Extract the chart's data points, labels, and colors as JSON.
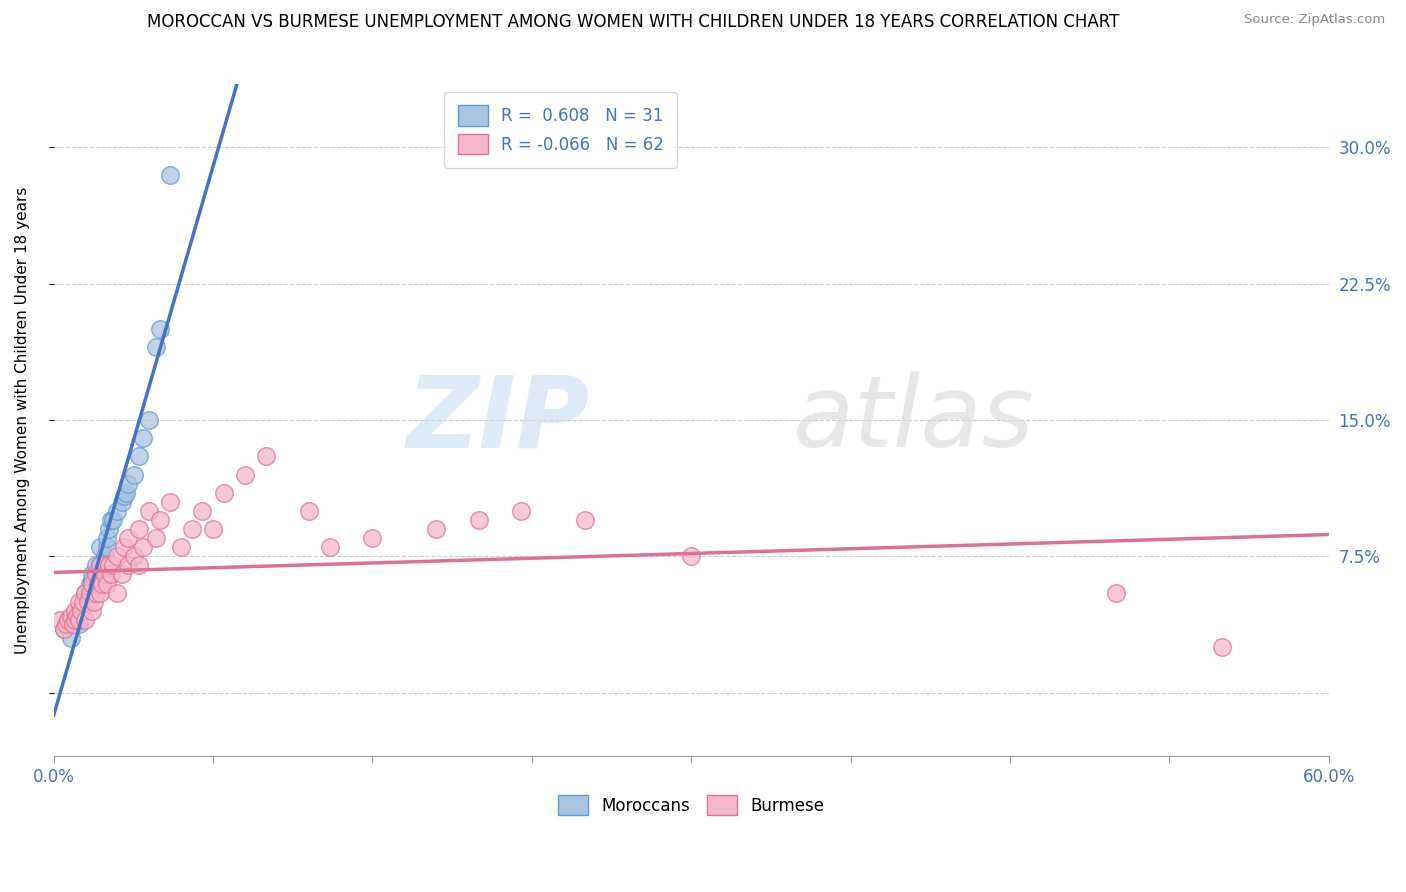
{
  "title": "MOROCCAN VS BURMESE UNEMPLOYMENT AMONG WOMEN WITH CHILDREN UNDER 18 YEARS CORRELATION CHART",
  "source": "Source: ZipAtlas.com",
  "ylabel": "Unemployment Among Women with Children Under 18 years",
  "xlim": [
    0,
    0.6
  ],
  "ylim": [
    -0.035,
    0.335
  ],
  "xticks": [
    0.0,
    0.075,
    0.15,
    0.225,
    0.3,
    0.375,
    0.45,
    0.525,
    0.6
  ],
  "xticklabels_outer": [
    "0.0%",
    "",
    "",
    "",
    "",
    "",
    "",
    "",
    "60.0%"
  ],
  "yticks": [
    0.0,
    0.075,
    0.15,
    0.225,
    0.3
  ],
  "yticklabels_right": [
    "",
    "7.5%",
    "15.0%",
    "22.5%",
    "30.0%"
  ],
  "moroccan_R": 0.608,
  "moroccan_N": 31,
  "burmese_R": -0.066,
  "burmese_N": 62,
  "moroccan_color": "#aac4e0",
  "moroccan_edge_color": "#5b9bd5",
  "moroccan_line_color": "#4472c4",
  "burmese_color": "#f4b8cc",
  "burmese_edge_color": "#e07090",
  "burmese_line_color": "#e07090",
  "moroccan_scatter_x": [
    0.005,
    0.008,
    0.01,
    0.012,
    0.015,
    0.015,
    0.017,
    0.018,
    0.018,
    0.02,
    0.021,
    0.022,
    0.022,
    0.024,
    0.025,
    0.025,
    0.026,
    0.027,
    0.028,
    0.03,
    0.032,
    0.033,
    0.034,
    0.035,
    0.038,
    0.04,
    0.042,
    0.045,
    0.048,
    0.05,
    0.055
  ],
  "moroccan_scatter_y": [
    0.035,
    0.03,
    0.04,
    0.038,
    0.05,
    0.055,
    0.06,
    0.062,
    0.065,
    0.07,
    0.065,
    0.07,
    0.08,
    0.075,
    0.08,
    0.085,
    0.09,
    0.095,
    0.095,
    0.1,
    0.105,
    0.108,
    0.11,
    0.115,
    0.12,
    0.13,
    0.14,
    0.15,
    0.19,
    0.2,
    0.285
  ],
  "burmese_scatter_x": [
    0.003,
    0.005,
    0.006,
    0.007,
    0.008,
    0.009,
    0.01,
    0.01,
    0.011,
    0.012,
    0.012,
    0.013,
    0.014,
    0.015,
    0.015,
    0.016,
    0.017,
    0.018,
    0.018,
    0.019,
    0.02,
    0.02,
    0.021,
    0.022,
    0.022,
    0.023,
    0.024,
    0.025,
    0.026,
    0.027,
    0.028,
    0.03,
    0.03,
    0.032,
    0.033,
    0.035,
    0.035,
    0.038,
    0.04,
    0.04,
    0.042,
    0.045,
    0.048,
    0.05,
    0.055,
    0.06,
    0.065,
    0.07,
    0.075,
    0.08,
    0.09,
    0.1,
    0.12,
    0.13,
    0.15,
    0.18,
    0.2,
    0.22,
    0.25,
    0.3,
    0.5,
    0.55
  ],
  "burmese_scatter_y": [
    0.04,
    0.035,
    0.038,
    0.04,
    0.042,
    0.038,
    0.04,
    0.045,
    0.042,
    0.04,
    0.05,
    0.045,
    0.05,
    0.04,
    0.055,
    0.05,
    0.055,
    0.045,
    0.06,
    0.05,
    0.055,
    0.065,
    0.06,
    0.055,
    0.07,
    0.06,
    0.065,
    0.06,
    0.07,
    0.065,
    0.07,
    0.055,
    0.075,
    0.065,
    0.08,
    0.07,
    0.085,
    0.075,
    0.07,
    0.09,
    0.08,
    0.1,
    0.085,
    0.095,
    0.105,
    0.08,
    0.09,
    0.1,
    0.09,
    0.11,
    0.12,
    0.13,
    0.1,
    0.08,
    0.085,
    0.09,
    0.095,
    0.1,
    0.095,
    0.075,
    0.055,
    0.025
  ]
}
